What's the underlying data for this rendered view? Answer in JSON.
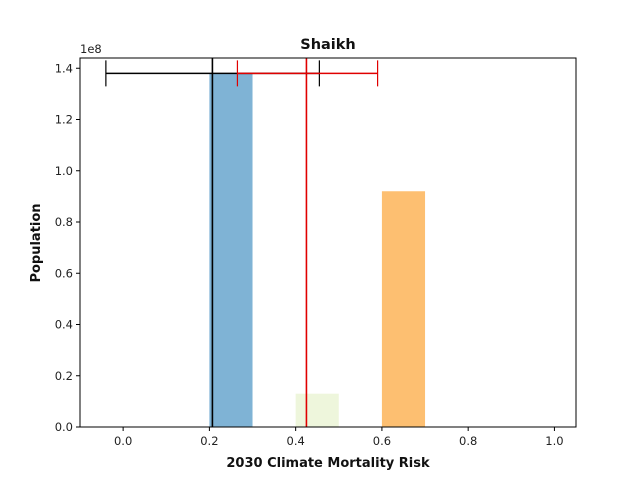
{
  "chart_data": {
    "type": "bar",
    "title": "Shaikh",
    "xlabel": "2030 Climate Mortality Risk",
    "ylabel": "Population",
    "y_multiplier": "1e8",
    "xlim": [
      -0.1,
      1.05
    ],
    "ylim": [
      0,
      1.44
    ],
    "xticks": [
      0.0,
      0.2,
      0.4,
      0.6,
      0.8,
      1.0
    ],
    "xtick_labels": [
      "0.0",
      "0.2",
      "0.4",
      "0.6",
      "0.8",
      "1.0"
    ],
    "yticks": [
      0.0,
      0.2,
      0.4,
      0.6,
      0.8,
      1.0,
      1.2,
      1.4
    ],
    "ytick_labels": [
      "0.0",
      "0.2",
      "0.4",
      "0.6",
      "0.8",
      "1.0",
      "1.2",
      "1.4"
    ],
    "bars": [
      {
        "x0": 0.2,
        "x1": 0.3,
        "value": 1.38,
        "color": "#7fb3d5"
      },
      {
        "x0": 0.4,
        "x1": 0.5,
        "value": 0.13,
        "color": "#eef6dc"
      },
      {
        "x0": 0.6,
        "x1": 0.7,
        "value": 0.92,
        "color": "#fdbf71"
      }
    ],
    "vlines": [
      {
        "x": 0.207,
        "color": "#000000"
      },
      {
        "x": 0.425,
        "color": "#e00000"
      }
    ],
    "error_bars": [
      {
        "center": 0.207,
        "low": -0.04,
        "high": 0.455,
        "y": 1.38,
        "color": "#000000"
      },
      {
        "center": 0.425,
        "low": 0.265,
        "high": 0.59,
        "y": 1.38,
        "color": "#e00000"
      }
    ]
  }
}
